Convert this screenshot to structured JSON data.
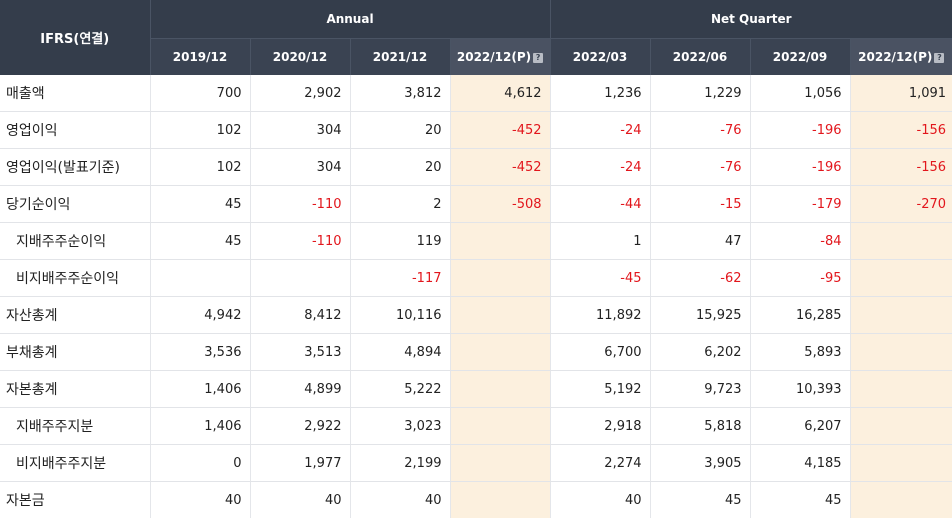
{
  "header": {
    "corner": "IFRS(연결)",
    "annual_label": "Annual",
    "quarter_label": "Net Quarter",
    "periods": [
      "2019/12",
      "2020/12",
      "2021/12",
      "2022/12(P)",
      "2022/03",
      "2022/06",
      "2022/09",
      "2022/12(P)"
    ],
    "help_icon": "question-icon"
  },
  "colors": {
    "header_bg": "#343d4b",
    "estimate_bg": "#fcf0de",
    "negative": "#e2161c"
  },
  "rows": [
    {
      "label": "매출액",
      "sub": false,
      "values": [
        "700",
        "2,902",
        "3,812",
        "4,612",
        "1,236",
        "1,229",
        "1,056",
        "1,091"
      ]
    },
    {
      "label": "영업이익",
      "sub": false,
      "values": [
        "102",
        "304",
        "20",
        "-452",
        "-24",
        "-76",
        "-196",
        "-156"
      ]
    },
    {
      "label": "영업이익(발표기준)",
      "sub": false,
      "values": [
        "102",
        "304",
        "20",
        "-452",
        "-24",
        "-76",
        "-196",
        "-156"
      ]
    },
    {
      "label": "당기순이익",
      "sub": false,
      "values": [
        "45",
        "-110",
        "2",
        "-508",
        "-44",
        "-15",
        "-179",
        "-270"
      ]
    },
    {
      "label": "지배주주순이익",
      "sub": true,
      "values": [
        "45",
        "-110",
        "119",
        "",
        "1",
        "47",
        "-84",
        ""
      ]
    },
    {
      "label": "비지배주주순이익",
      "sub": true,
      "values": [
        "",
        "",
        "-117",
        "",
        "-45",
        "-62",
        "-95",
        ""
      ]
    },
    {
      "label": "자산총계",
      "sub": false,
      "values": [
        "4,942",
        "8,412",
        "10,116",
        "",
        "11,892",
        "15,925",
        "16,285",
        ""
      ]
    },
    {
      "label": "부채총계",
      "sub": false,
      "values": [
        "3,536",
        "3,513",
        "4,894",
        "",
        "6,700",
        "6,202",
        "5,893",
        ""
      ]
    },
    {
      "label": "자본총계",
      "sub": false,
      "values": [
        "1,406",
        "4,899",
        "5,222",
        "",
        "5,192",
        "9,723",
        "10,393",
        ""
      ]
    },
    {
      "label": "지배주주지분",
      "sub": true,
      "values": [
        "1,406",
        "2,922",
        "3,023",
        "",
        "2,918",
        "5,818",
        "6,207",
        ""
      ]
    },
    {
      "label": "비지배주주지분",
      "sub": true,
      "values": [
        "0",
        "1,977",
        "2,199",
        "",
        "2,274",
        "3,905",
        "4,185",
        ""
      ]
    },
    {
      "label": "자본금",
      "sub": false,
      "values": [
        "40",
        "40",
        "40",
        "",
        "40",
        "45",
        "45",
        ""
      ]
    }
  ]
}
